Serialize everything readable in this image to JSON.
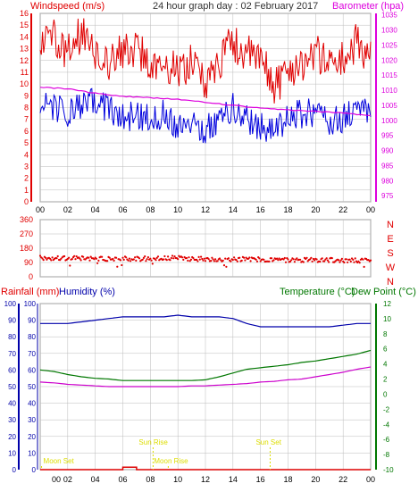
{
  "header": {
    "left_title": "Windspeed (m/s)",
    "center_title": "24 hour graph day : 02 February 2017",
    "right_title": "Barometer (hpa)"
  },
  "lower_header": {
    "rainfall_label": "Rainfall (mm)",
    "humidity_label": "Humidity (%)",
    "temperature_label": "Temperature (°C)",
    "dewpoint_label": "Dew Point (°C)"
  },
  "annotations": {
    "moon_set": "Moon Set",
    "sun_rise": "Sun Rise",
    "moon_rise": "Moon Rise",
    "sun_set": "Sun Set"
  },
  "colors": {
    "wind_gust": "#e00000",
    "wind_avg": "#0000dd",
    "barometer": "#dd00dd",
    "direction": "#e00000",
    "humidity": "#0000aa",
    "temperature": "#007700",
    "dewpoint": "#cc00cc",
    "rainfall": "#dd0000",
    "sun_moon": "#dddd00",
    "grid": "#bbbbbb"
  },
  "chart_data": [
    {
      "type": "line",
      "name": "wind-and-pressure",
      "x_ticks": [
        "00",
        "02",
        "04",
        "06",
        "08",
        "10",
        "12",
        "14",
        "16",
        "18",
        "20",
        "22",
        "00"
      ],
      "y_left_ticks": [
        0,
        1,
        2,
        3,
        4,
        5,
        6,
        7,
        8,
        9,
        10,
        11,
        12,
        13,
        14,
        15,
        16
      ],
      "y_right_ticks": [
        975,
        980,
        985,
        990,
        995,
        1000,
        1005,
        1010,
        1015,
        1020,
        1025,
        1030,
        1035
      ],
      "ylim_left": [
        0,
        16
      ],
      "ylim_right": [
        973,
        1035.5
      ],
      "series": [
        {
          "key": "gust",
          "hours": [
            0,
            1,
            2,
            3,
            4,
            5,
            6,
            7,
            8,
            9,
            10,
            11,
            12,
            13,
            14,
            15,
            16,
            17,
            18,
            19,
            20,
            21,
            22,
            23,
            24
          ],
          "values": [
            13.5,
            14,
            12.5,
            14.5,
            13,
            12,
            12.5,
            13,
            11.5,
            12,
            11,
            12,
            10,
            12,
            13.5,
            12.5,
            12,
            10,
            11,
            12,
            12.5,
            12,
            12,
            13.5,
            12.5
          ]
        },
        {
          "key": "average",
          "hours": [
            0,
            1,
            2,
            3,
            4,
            5,
            6,
            7,
            8,
            9,
            10,
            11,
            12,
            13,
            14,
            15,
            16,
            17,
            18,
            19,
            20,
            21,
            22,
            23,
            24
          ],
          "values": [
            8,
            8,
            7.5,
            8,
            8.5,
            8,
            7,
            7.5,
            7,
            7.5,
            6.5,
            7,
            6,
            7,
            8,
            7,
            6.5,
            6,
            7,
            7.5,
            7.5,
            7,
            7,
            8,
            7.5
          ]
        },
        {
          "name": "Barometer",
          "hours": [
            0,
            2,
            4,
            6,
            8,
            10,
            12,
            14,
            16,
            18,
            20,
            22,
            24
          ],
          "values": [
            1011,
            1010.5,
            1009,
            1008,
            1007.5,
            1007,
            1006,
            1005,
            1004,
            1003.5,
            1003,
            1002.5,
            1001.5
          ]
        }
      ]
    },
    {
      "type": "scatter",
      "name": "wind-direction",
      "y_ticks": [
        0,
        90,
        180,
        270,
        360
      ],
      "compass_labels": [
        "N",
        "W",
        "S",
        "E",
        "N"
      ],
      "ylim": [
        0,
        360
      ],
      "series": [
        {
          "key": "direction",
          "hours": [
            0,
            2,
            4,
            6,
            8,
            10,
            12,
            14,
            16,
            18,
            20,
            22,
            24
          ],
          "values": [
            120,
            118,
            115,
            112,
            115,
            118,
            110,
            112,
            108,
            105,
            108,
            102,
            100
          ]
        }
      ]
    },
    {
      "type": "line",
      "name": "humidity-temperature-rain",
      "y_left_ticks": [
        0,
        10,
        20,
        30,
        40,
        50,
        60,
        70,
        80,
        90,
        100
      ],
      "y_right_ticks": [
        -10,
        -8,
        -6,
        -4,
        -2,
        0,
        2,
        4,
        6,
        8,
        10,
        12
      ],
      "ylim_left": [
        0,
        100
      ],
      "ylim_right": [
        -10,
        12
      ],
      "series": [
        {
          "name": "Humidity (%)",
          "hours": [
            0,
            1,
            2,
            3,
            4,
            5,
            6,
            7,
            8,
            9,
            10,
            11,
            12,
            13,
            14,
            15,
            16,
            17,
            18,
            19,
            20,
            21,
            22,
            23,
            24
          ],
          "values": [
            88,
            88,
            88,
            89,
            90,
            91,
            92,
            92,
            92,
            92,
            93,
            92,
            92,
            92,
            91,
            88,
            86,
            86,
            86,
            86,
            86,
            86,
            87,
            88,
            88
          ]
        },
        {
          "name": "Temperature (°C)",
          "hours": [
            0,
            1,
            2,
            3,
            4,
            5,
            6,
            7,
            8,
            9,
            10,
            11,
            12,
            13,
            14,
            15,
            16,
            17,
            18,
            19,
            20,
            21,
            22,
            23,
            24
          ],
          "values": [
            3.2,
            3.0,
            2.6,
            2.3,
            2.1,
            2.0,
            1.8,
            1.8,
            1.8,
            1.8,
            1.8,
            1.8,
            1.9,
            2.3,
            2.8,
            3.3,
            3.5,
            3.7,
            3.9,
            4.2,
            4.4,
            4.7,
            5.0,
            5.3,
            5.8
          ]
        },
        {
          "name": "Dew Point (°C)",
          "hours": [
            0,
            1,
            2,
            3,
            4,
            5,
            6,
            7,
            8,
            9,
            10,
            11,
            12,
            13,
            14,
            15,
            16,
            17,
            18,
            19,
            20,
            21,
            22,
            23,
            24
          ],
          "values": [
            1.6,
            1.5,
            1.3,
            1.2,
            1.1,
            1.0,
            1.0,
            1.0,
            1.0,
            1.0,
            1.0,
            1.1,
            1.1,
            1.2,
            1.3,
            1.4,
            1.6,
            1.7,
            1.9,
            2.0,
            2.3,
            2.6,
            2.9,
            3.3,
            3.6
          ]
        },
        {
          "name": "Rainfall (mm)",
          "hours": [
            0,
            6,
            6,
            7,
            7,
            24
          ],
          "values": [
            0,
            0,
            0.7,
            0.7,
            0,
            0
          ]
        }
      ],
      "events": [
        {
          "key": "moon_set",
          "hour": 0.1
        },
        {
          "key": "sun_rise",
          "hour": 8.2
        },
        {
          "key": "moon_rise",
          "hour": 9.3
        },
        {
          "key": "sun_set",
          "hour": 16.7
        }
      ]
    }
  ]
}
